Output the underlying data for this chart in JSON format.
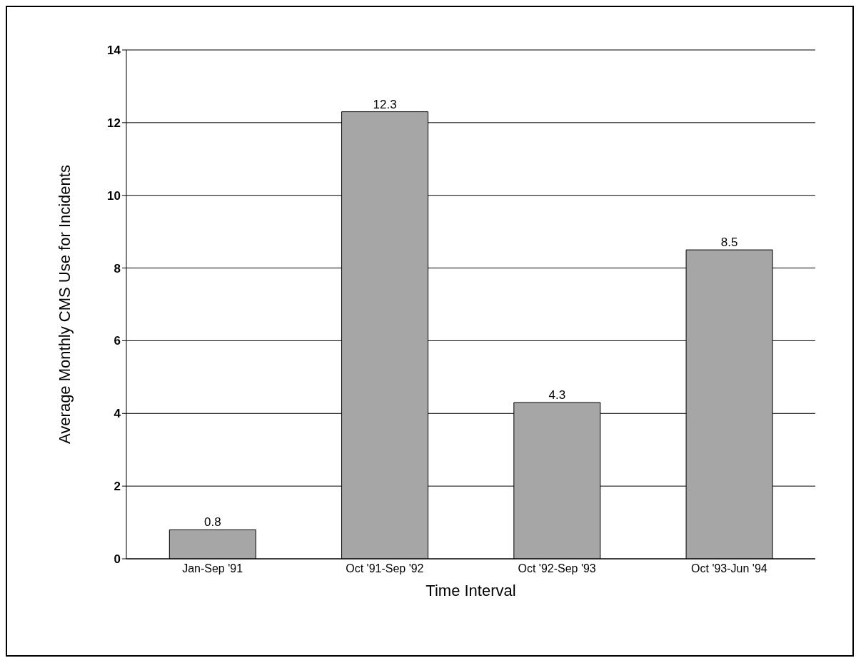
{
  "chart_data": {
    "type": "bar",
    "xlabel": "Time Interval",
    "ylabel": "Average Monthly CMS Use for Incidents",
    "categories": [
      "Jan-Sep '91",
      "Oct '91-Sep '92",
      "Oct '92-Sep '93",
      "Oct '93-Jun '94"
    ],
    "values": [
      0.8,
      12.3,
      4.3,
      8.5
    ],
    "color": "#a6a6a6",
    "ylim": [
      0,
      14
    ],
    "yticks": [
      0,
      2,
      4,
      6,
      8,
      10,
      12,
      14
    ],
    "grid": "y",
    "data_labels": true
  }
}
